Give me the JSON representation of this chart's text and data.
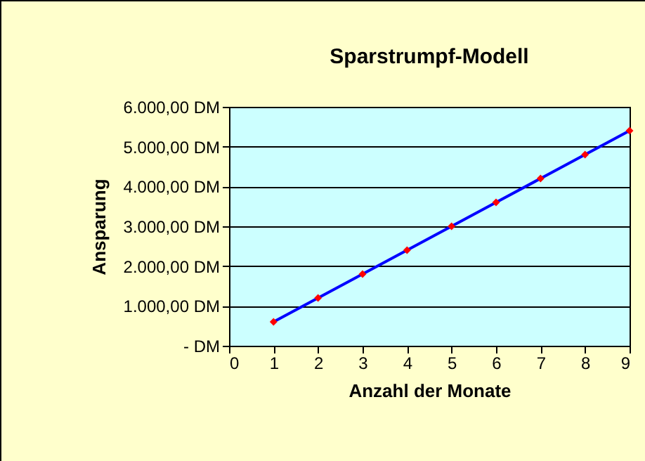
{
  "chart_data": {
    "type": "line",
    "title": "Sparstrumpf-Modell",
    "xlabel": "Anzahl der Monate",
    "ylabel": "Ansparung",
    "x": [
      1,
      2,
      3,
      4,
      5,
      6,
      7,
      8,
      9
    ],
    "series": [
      {
        "color": "#0000ff",
        "colors": [
          "#ff0000",
          "#ff0000",
          "#ff0000",
          "#ff0000",
          "#ff0000",
          "#ff0000",
          "#ff0000",
          "#ff0000",
          "#ff0000"
        ],
        "values": [
          600,
          1200,
          1800,
          2400,
          3000,
          3600,
          4200,
          4800,
          5400
        ]
      }
    ],
    "xlim": [
      0,
      9
    ],
    "xticks": [
      0,
      1,
      2,
      3,
      4,
      5,
      6,
      7,
      8,
      9
    ],
    "ylim": [
      0,
      6000
    ],
    "yticks": [
      {
        "value": 0,
        "label": "-   DM"
      },
      {
        "value": 1000,
        "label": "1.000,00 DM"
      },
      {
        "value": 2000,
        "label": "2.000,00 DM"
      },
      {
        "value": 3000,
        "label": "3.000,00 DM"
      },
      {
        "value": 4000,
        "label": "4.000,00 DM"
      },
      {
        "value": 5000,
        "label": "5.000,00 DM"
      },
      {
        "value": 6000,
        "label": "6.000,00 DM"
      }
    ],
    "grid": "y",
    "marker": "diamond",
    "line_style": "solid"
  }
}
